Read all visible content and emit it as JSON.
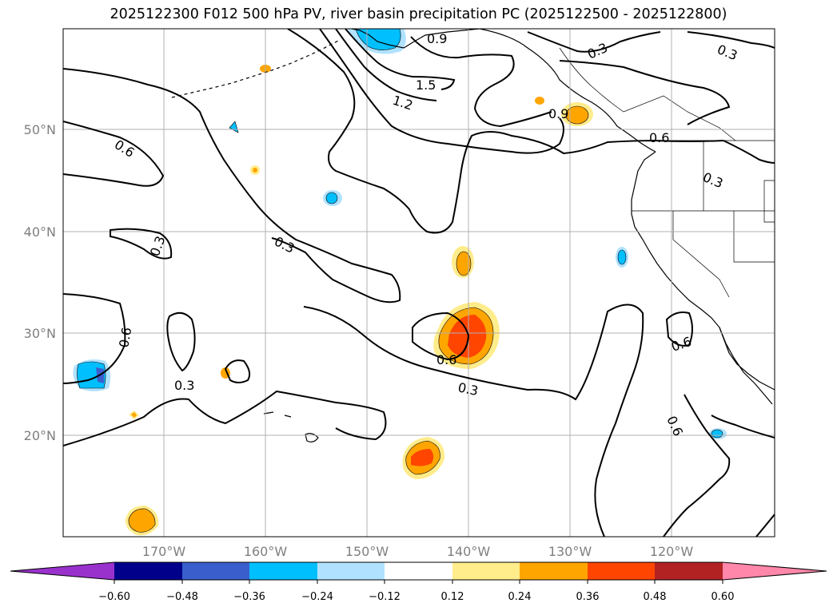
{
  "title": "2025122300 F012 500 hPa PV, river basin precipitation PC (2025122500 - 2025122800)",
  "latitude_labels": [
    "50°N",
    "40°N",
    "30°N",
    "20°N"
  ],
  "longitude_labels": [
    "170°W",
    "160°W",
    "150°W",
    "140°W",
    "130°W",
    "120°W"
  ],
  "contour_labels": [
    "0.9",
    "1.5",
    "1.2",
    "0.3",
    "0.3",
    "0.9",
    "0.6",
    "0.6",
    "0.3",
    "0.3",
    "0.3",
    "0.6",
    "0.3",
    "0.6",
    "0.3",
    "0.6",
    "0.6"
  ],
  "colorbar": {
    "ticks": [
      "−0.60",
      "−0.48",
      "−0.36",
      "−0.24",
      "−0.12",
      "0.12",
      "0.24",
      "0.36",
      "0.48",
      "0.60"
    ],
    "colors": [
      "#9932cc",
      "#00008b",
      "#3a5fcd",
      "#00bfff",
      "#b0e2ff",
      "#ffffff",
      "#ffec8b",
      "#ffa500",
      "#ff4500",
      "#b22222",
      "#ff88aa"
    ]
  },
  "shading_colors": {
    "light_blue": "#b0e2ff",
    "blue": "#00bfff",
    "dark_blue": "#3a5fcd",
    "yellow": "#ffec8b",
    "orange": "#ffa500",
    "red_orange": "#ff4500"
  }
}
